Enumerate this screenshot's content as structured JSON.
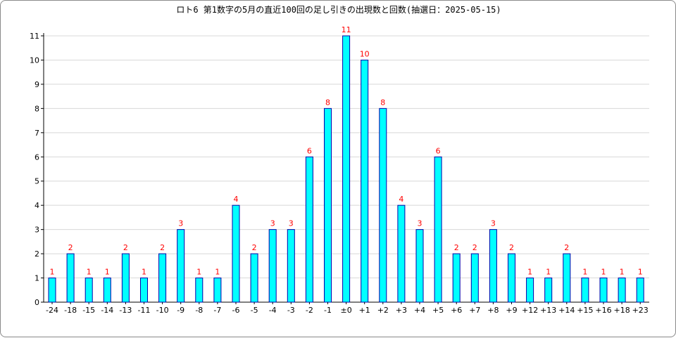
{
  "chart_data": {
    "type": "bar",
    "title": "ロト6 第1数字の5月の直近100回の足し引きの出現数と回数(抽選日：2025-05-15)",
    "xlabel": "",
    "ylabel": "",
    "ylim": [
      0,
      11
    ],
    "grid": true,
    "legend": "none",
    "categories": [
      "-24",
      "-18",
      "-15",
      "-14",
      "-13",
      "-11",
      "-10",
      "-9",
      "-8",
      "-7",
      "-6",
      "-5",
      "-4",
      "-3",
      "-2",
      "-1",
      "±0",
      "+1",
      "+2",
      "+3",
      "+4",
      "+5",
      "+6",
      "+7",
      "+8",
      "+9",
      "+12",
      "+13",
      "+14",
      "+15",
      "+16",
      "+18",
      "+23"
    ],
    "values": [
      1,
      2,
      1,
      1,
      2,
      1,
      2,
      3,
      1,
      1,
      4,
      2,
      3,
      3,
      6,
      8,
      11,
      10,
      8,
      4,
      3,
      6,
      2,
      2,
      3,
      2,
      1,
      1,
      2,
      1,
      1,
      1,
      1
    ],
    "yticks": [
      "0",
      "1",
      "2",
      "3",
      "4",
      "5",
      "6",
      "7",
      "8",
      "9",
      "10",
      "11"
    ],
    "colors": {
      "bar_fill": "#00ffff",
      "bar_stroke": "#0000aa",
      "data_label": "#ff0000",
      "grid": "#d8d8d8",
      "axis": "#000000"
    }
  }
}
